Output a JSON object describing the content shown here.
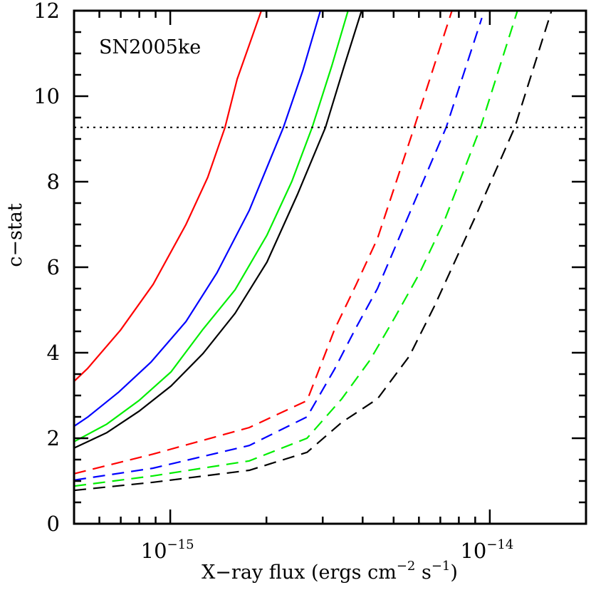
{
  "chart_data": {
    "type": "line",
    "title": "",
    "annotation": "SN2005ke",
    "xlabel": "X−ray flux (ergs cm⁻² s⁻¹)",
    "ylabel": "c−stat",
    "xscale": "log",
    "x_units_note": "x values given in units of 1e-15 ergs cm^-2 s^-1",
    "xlim": [
      5e-16,
      2e-14
    ],
    "ylim": [
      0,
      12
    ],
    "x_major_ticks": [
      {
        "value": 1e-15,
        "label_base": "10",
        "label_exp": "−15"
      },
      {
        "value": 1e-14,
        "label_base": "10",
        "label_exp": "−14"
      }
    ],
    "y_ticks": [
      0,
      2,
      4,
      6,
      8,
      10,
      12
    ],
    "grid": false,
    "legend": null,
    "threshold_line": {
      "y": 9.27,
      "style": "dotted",
      "color": "#000000"
    },
    "series": [
      {
        "name": "red solid",
        "color": "#ff0000",
        "style": "solid",
        "x": [
          0.5,
          0.551,
          0.699,
          0.884,
          1.12,
          1.31,
          1.484,
          1.62,
          1.927
        ],
        "y": [
          3.33,
          3.63,
          4.53,
          5.6,
          7.0,
          8.1,
          9.27,
          10.4,
          12.0
        ]
      },
      {
        "name": "blue solid",
        "color": "#0000ff",
        "style": "solid",
        "x": [
          0.5,
          0.553,
          0.69,
          0.87,
          1.12,
          1.4,
          1.767,
          2.26,
          2.6,
          2.95
        ],
        "y": [
          2.28,
          2.5,
          3.08,
          3.78,
          4.73,
          5.87,
          7.33,
          9.27,
          10.6,
          12.0
        ]
      },
      {
        "name": "green solid",
        "color": "#00ee00",
        "style": "solid",
        "x": [
          0.5,
          0.633,
          0.798,
          1.005,
          1.266,
          1.595,
          2.007,
          2.4,
          2.78,
          3.2,
          3.6
        ],
        "y": [
          1.92,
          2.33,
          2.88,
          3.55,
          4.55,
          5.47,
          6.75,
          8.0,
          9.27,
          10.7,
          12.0
        ]
      },
      {
        "name": "black solid",
        "color": "#000000",
        "style": "solid",
        "x": [
          0.5,
          0.633,
          0.798,
          1.005,
          1.266,
          1.595,
          2.007,
          2.5,
          3.06,
          3.5,
          3.97
        ],
        "y": [
          1.77,
          2.13,
          2.63,
          3.22,
          3.98,
          4.92,
          6.12,
          7.7,
          9.27,
          10.7,
          12.0
        ]
      },
      {
        "name": "red dashed",
        "color": "#ff0000",
        "style": "dashed",
        "x": [
          0.5,
          0.884,
          1.767,
          2.68,
          3.27,
          3.81,
          4.45,
          5.8,
          7.61
        ],
        "y": [
          1.17,
          1.63,
          2.25,
          2.88,
          4.55,
          5.58,
          6.67,
          9.27,
          12.0
        ]
      },
      {
        "name": "blue dashed",
        "color": "#0000ff",
        "style": "dashed",
        "x": [
          0.5,
          0.884,
          1.767,
          2.68,
          3.27,
          3.81,
          4.45,
          5.6,
          7.3,
          9.44
        ],
        "y": [
          1.02,
          1.3,
          1.83,
          2.5,
          3.62,
          4.58,
          5.5,
          7.25,
          9.27,
          11.83
        ]
      },
      {
        "name": "green dashed",
        "color": "#00ee00",
        "style": "dashed",
        "x": [
          0.5,
          0.884,
          1.767,
          2.68,
          3.44,
          4.22,
          5.05,
          6.0,
          7.2,
          9.35,
          12.2
        ],
        "y": [
          0.88,
          1.12,
          1.47,
          2.0,
          2.92,
          3.83,
          4.83,
          5.83,
          7.08,
          9.27,
          12.0
        ]
      },
      {
        "name": "black dashed",
        "color": "#000000",
        "style": "dashed",
        "x": [
          0.5,
          0.884,
          1.767,
          2.68,
          3.44,
          4.45,
          5.6,
          6.7,
          9.1,
          11.97,
          15.6
        ],
        "y": [
          0.78,
          0.97,
          1.25,
          1.67,
          2.37,
          2.92,
          3.92,
          5.08,
          7.25,
          9.27,
          12.0
        ]
      }
    ]
  }
}
